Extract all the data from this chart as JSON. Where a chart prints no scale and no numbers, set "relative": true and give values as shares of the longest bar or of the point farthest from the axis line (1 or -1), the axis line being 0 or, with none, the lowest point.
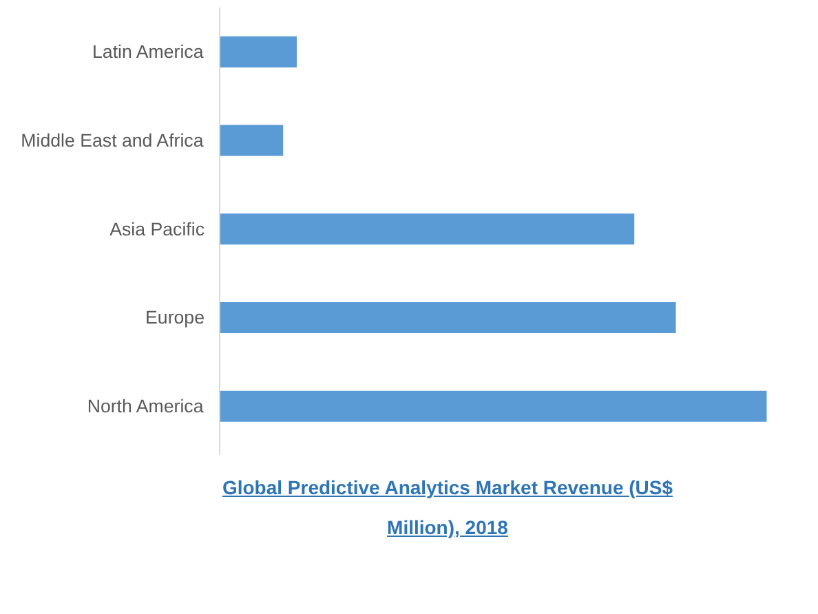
{
  "chart_data": {
    "type": "bar",
    "orientation": "horizontal",
    "relative": true,
    "title": "Global Predictive Analytics Market Revenue (US$ Million), 2018",
    "categories": [
      "Latin America",
      "Middle East and Africa",
      "Asia Pacific",
      "Europe",
      "North America"
    ],
    "values": [
      0.141,
      0.116,
      0.758,
      0.834,
      1
    ],
    "color": "#5b9bd5",
    "grid": false
  }
}
